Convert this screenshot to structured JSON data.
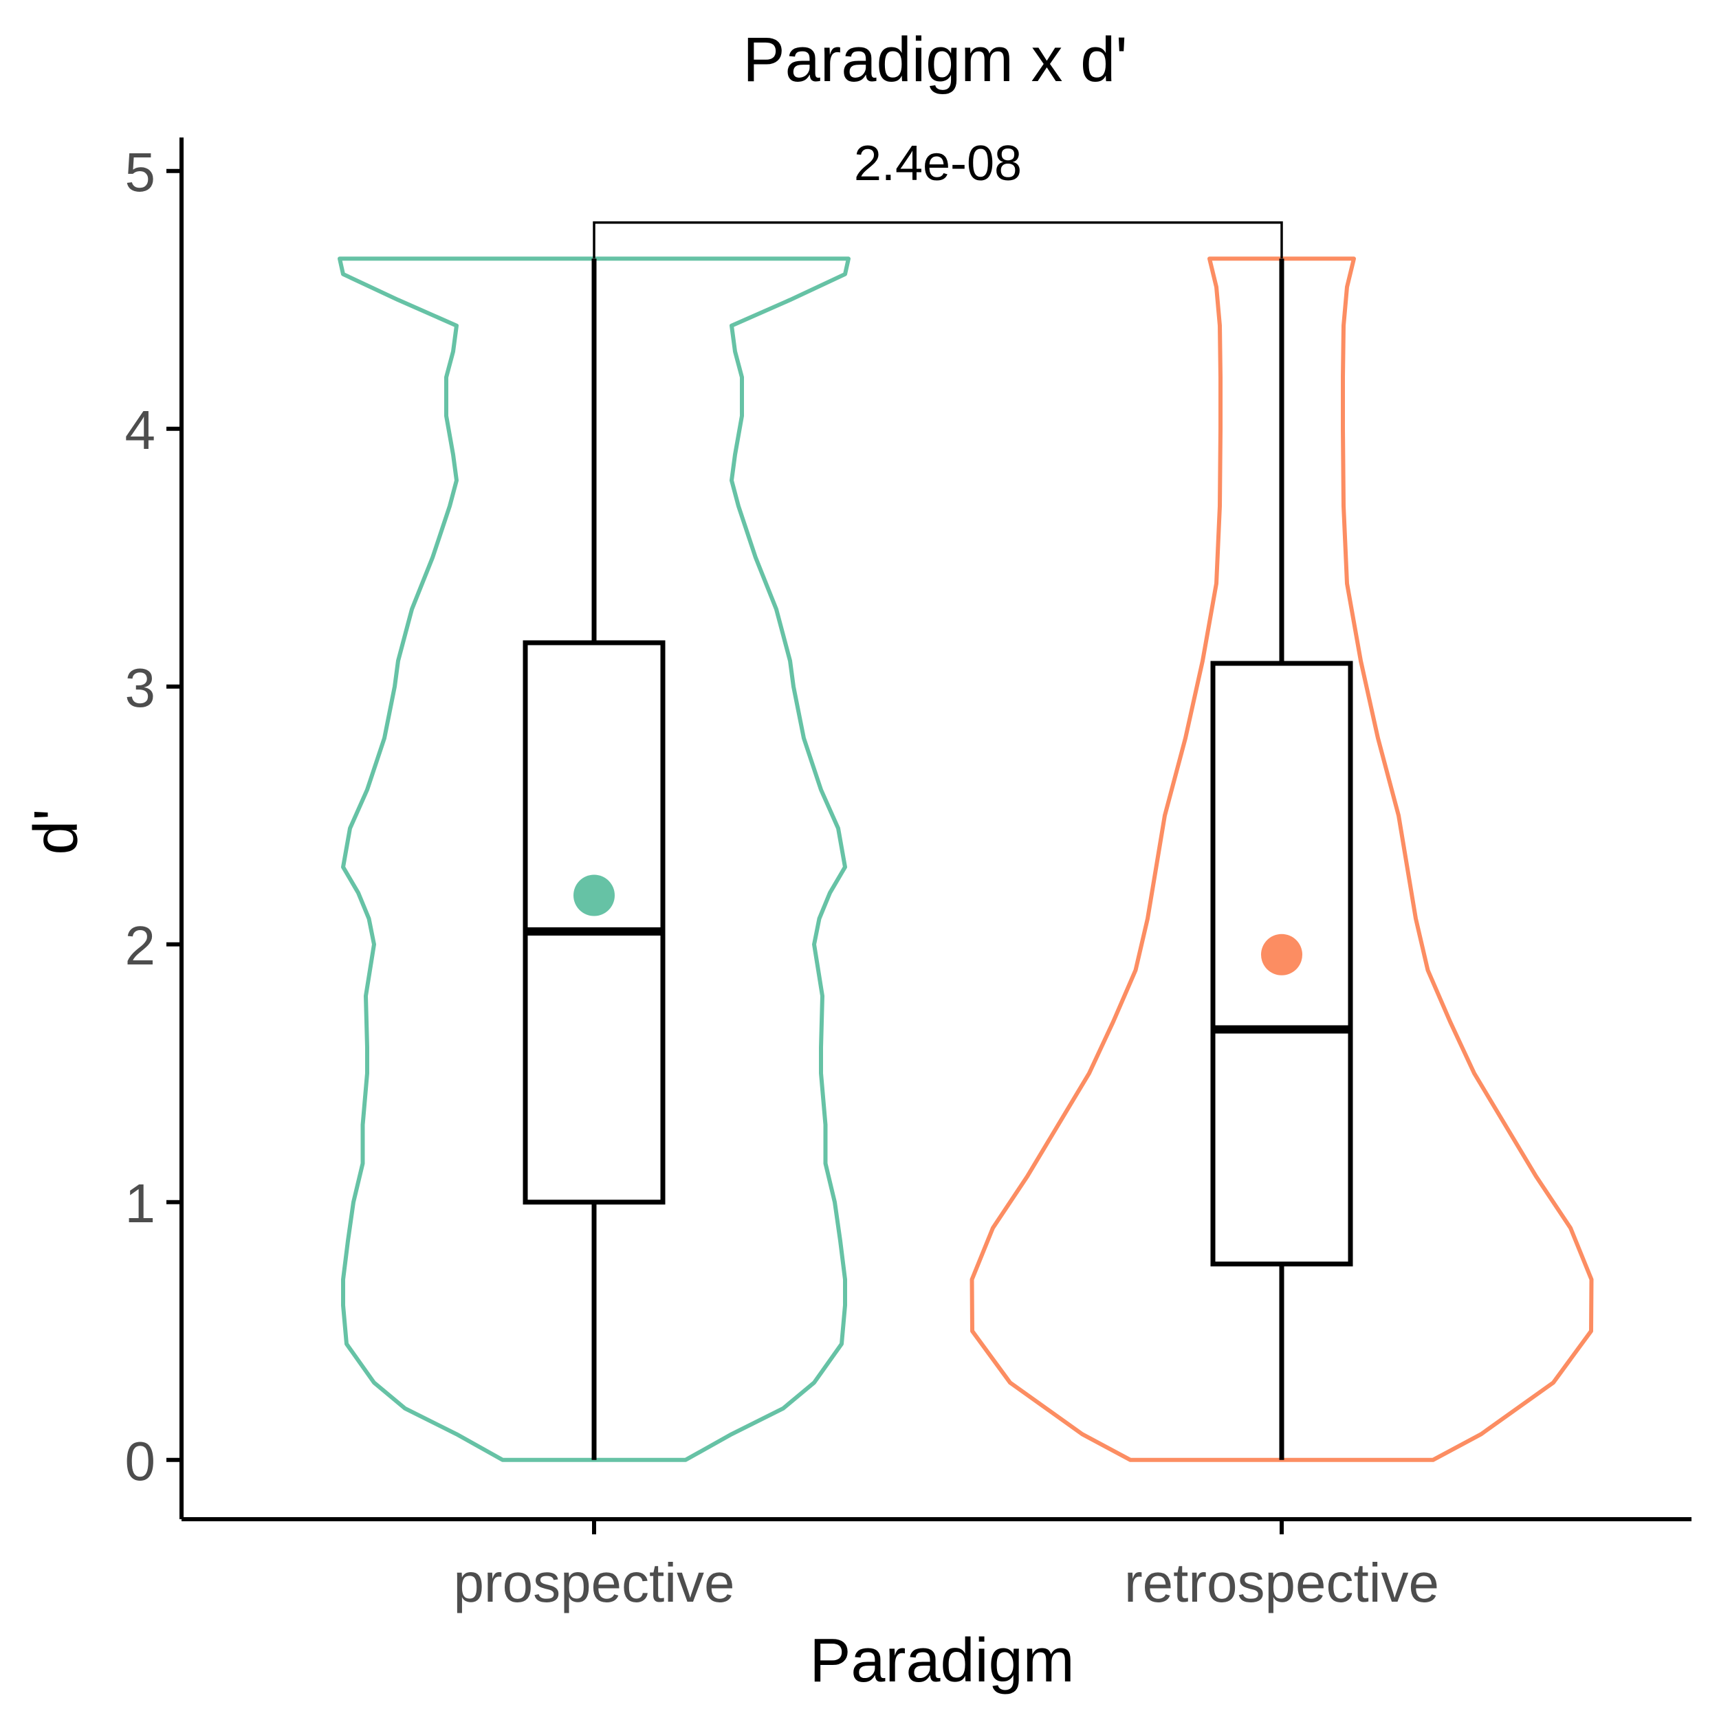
{
  "chart_data": {
    "type": "violin",
    "title": "Paradigm x d'",
    "xlabel": "Paradigm",
    "ylabel": "d'",
    "ylim": [
      -0.23,
      5.13
    ],
    "yticks": [
      0,
      1,
      2,
      3,
      4,
      5
    ],
    "ytick_labels": [
      "0",
      "1",
      "2",
      "3",
      "4",
      "5"
    ],
    "categories": [
      "prospective",
      "retrospective"
    ],
    "grid": false,
    "legend": "none",
    "comparison": {
      "groups": [
        "prospective",
        "retrospective"
      ],
      "label": "2.4e-08",
      "y": 4.8
    },
    "series": [
      {
        "category": "prospective",
        "color": "#66c2a5",
        "mean": 2.19,
        "box": {
          "whisker_low": 0.0,
          "q1": 1.0,
          "median": 2.05,
          "q3": 3.17,
          "whisker_high": 4.66
        },
        "violin_profile": [
          [
            0.0,
            0.266
          ],
          [
            0.1,
            0.4
          ],
          [
            0.2,
            0.55
          ],
          [
            0.3,
            0.64
          ],
          [
            0.45,
            0.72
          ],
          [
            0.6,
            0.73
          ],
          [
            0.7,
            0.73
          ],
          [
            0.85,
            0.716
          ],
          [
            1.0,
            0.7
          ],
          [
            1.15,
            0.673
          ],
          [
            1.3,
            0.673
          ],
          [
            1.5,
            0.66
          ],
          [
            1.6,
            0.66
          ],
          [
            1.8,
            0.664
          ],
          [
            2.0,
            0.64
          ],
          [
            2.1,
            0.655
          ],
          [
            2.2,
            0.686
          ],
          [
            2.3,
            0.73
          ],
          [
            2.45,
            0.71
          ],
          [
            2.6,
            0.66
          ],
          [
            2.8,
            0.61
          ],
          [
            3.0,
            0.58
          ],
          [
            3.1,
            0.57
          ],
          [
            3.3,
            0.53
          ],
          [
            3.5,
            0.47
          ],
          [
            3.7,
            0.42
          ],
          [
            3.8,
            0.4
          ],
          [
            3.9,
            0.41
          ],
          [
            4.05,
            0.43
          ],
          [
            4.2,
            0.43
          ],
          [
            4.3,
            0.41
          ],
          [
            4.4,
            0.4
          ],
          [
            4.5,
            0.57
          ],
          [
            4.6,
            0.73
          ],
          [
            4.66,
            0.74
          ]
        ]
      },
      {
        "category": "retrospective",
        "color": "#fc8d62",
        "mean": 1.96,
        "box": {
          "whisker_low": 0.0,
          "q1": 0.76,
          "median": 1.67,
          "q3": 3.09,
          "whisker_high": 4.66
        },
        "violin_profile": [
          [
            0.0,
            0.44
          ],
          [
            0.1,
            0.58
          ],
          [
            0.3,
            0.79
          ],
          [
            0.5,
            0.9
          ],
          [
            0.7,
            0.901
          ],
          [
            0.9,
            0.84
          ],
          [
            1.1,
            0.74
          ],
          [
            1.3,
            0.65
          ],
          [
            1.5,
            0.56
          ],
          [
            1.7,
            0.49
          ],
          [
            1.9,
            0.425
          ],
          [
            2.1,
            0.39
          ],
          [
            2.3,
            0.365
          ],
          [
            2.5,
            0.34
          ],
          [
            2.8,
            0.28
          ],
          [
            3.1,
            0.23
          ],
          [
            3.4,
            0.19
          ],
          [
            3.7,
            0.18
          ],
          [
            4.0,
            0.178
          ],
          [
            4.2,
            0.178
          ],
          [
            4.4,
            0.18
          ],
          [
            4.55,
            0.19
          ],
          [
            4.66,
            0.21
          ]
        ]
      }
    ]
  }
}
